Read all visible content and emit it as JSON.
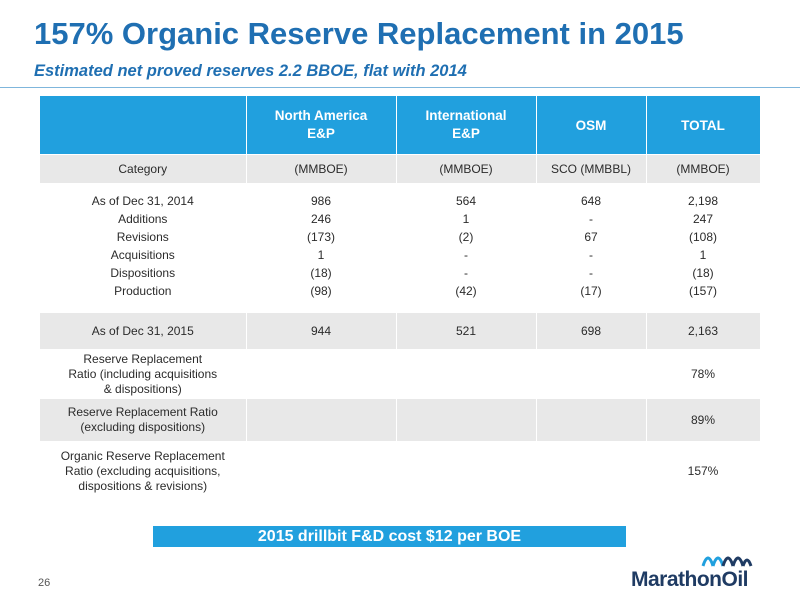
{
  "title": "157% Organic Reserve Replacement in 2015",
  "subtitle": "Estimated net proved reserves 2.2 BBOE, flat with 2014",
  "table": {
    "headers": [
      "",
      "North America\nE&P",
      "International\nE&P",
      "OSM",
      "TOTAL"
    ],
    "category_row": [
      "Category",
      "(MMBOE)",
      "(MMBOE)",
      "SCO (MMBBL)",
      "(MMBOE)"
    ],
    "detail_labels": [
      "As of Dec 31, 2014",
      "Additions",
      "Revisions",
      "Acquisitions",
      "Dispositions",
      "Production"
    ],
    "detail_columns": [
      [
        "986",
        "246",
        "(173)",
        "1",
        "(18)",
        "(98)"
      ],
      [
        "564",
        "1",
        "(2)",
        "-",
        "-",
        "(42)"
      ],
      [
        "648",
        "-",
        "67",
        "-",
        "-",
        "(17)"
      ],
      [
        "2,198",
        "247",
        "(108)",
        "1",
        "(18)",
        "(157)"
      ]
    ],
    "total_row": [
      "As of Dec 31, 2015",
      "944",
      "521",
      "698",
      "2,163"
    ],
    "ratio_rows": [
      {
        "label": "Reserve Replacement Ratio (including acquisitions & dispositions)",
        "total": "78%"
      },
      {
        "label": "Reserve Replacement Ratio (excluding dispositions)",
        "total": "89%"
      },
      {
        "label": "Organic Reserve Replacement Ratio (excluding acquisitions, dispositions & revisions)",
        "total": "157%"
      }
    ]
  },
  "banner": "2015 drillbit F&D cost $12 per BOE",
  "page_number": "26",
  "logo_text": "MarathonOil",
  "colors": {
    "accent": "#21a0de",
    "title": "#1f6fb2",
    "row_shade": "#e8e8e8",
    "logo": "#1f3b63"
  }
}
